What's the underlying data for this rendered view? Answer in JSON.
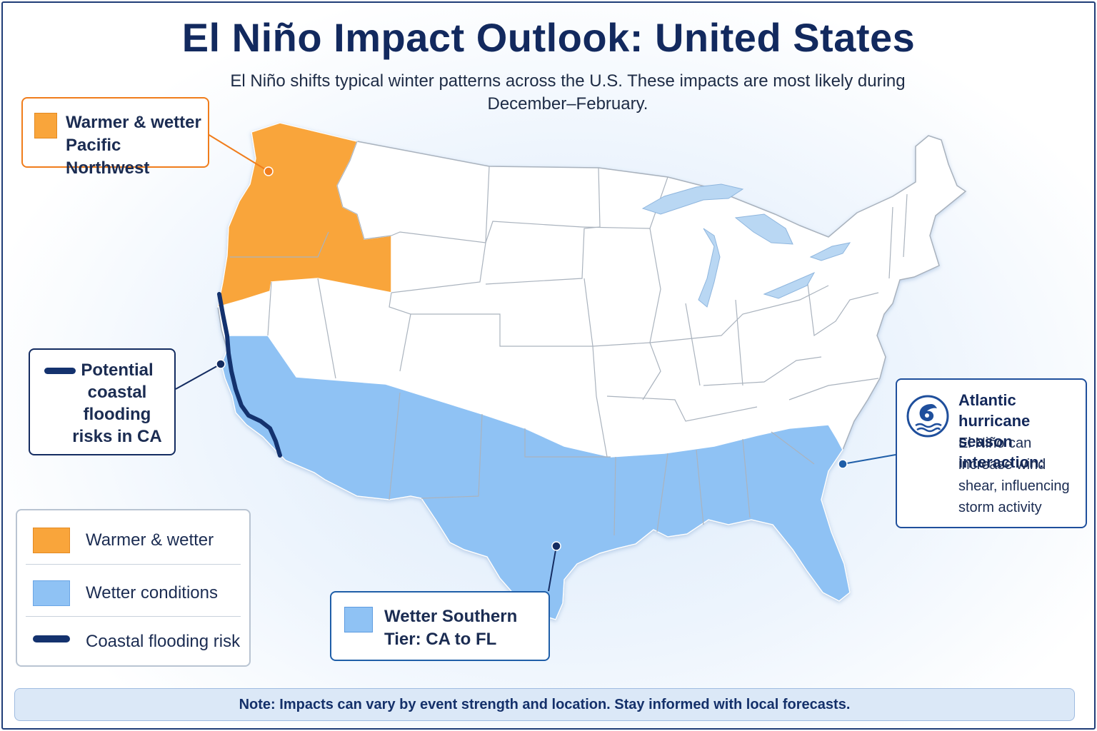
{
  "title": "El Niño Impact Outlook: United States",
  "subtitle": "El Niño shifts typical winter patterns across the U.S. These impacts are most likely during December–February.",
  "callouts": {
    "pnw": {
      "text": "Warmer & wetter Pacific Northwest"
    },
    "california": {
      "text": "Potential coastal flooding risks in CA"
    },
    "atlantic": {
      "heading": "Atlantic hurricane season interaction:",
      "body": "El Niño can increase wind shear, influencing storm activity",
      "icon": "hurricane-icon"
    },
    "southern_tier": {
      "text": "Wetter Southern Tier: CA to FL"
    }
  },
  "legend": {
    "items": [
      {
        "label": "Warmer & wetter",
        "color": "#f9a53b"
      },
      {
        "label": "Wetter conditions",
        "color": "#8fc2f4"
      },
      {
        "label": "Coastal flooding risk",
        "color": "#14326e"
      }
    ]
  },
  "note": "Note: Impacts can vary by event strength and location. Stay informed with local forecasts.",
  "colors": {
    "warmer_wetter": "#f9a53b",
    "wetter": "#8fc2f4",
    "coastal_flood": "#14326e",
    "land": "#ffffff",
    "lakes": "#b9d7f3"
  }
}
